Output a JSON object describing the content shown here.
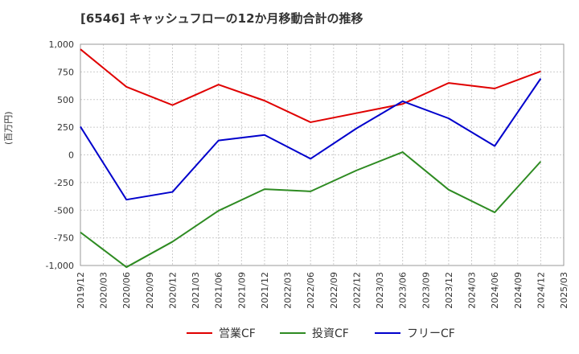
{
  "chart_data": {
    "type": "line",
    "title": "[6546]  キャッシュフローの12か月移動合計の推移",
    "xlabel": "",
    "ylabel": "(百万円)",
    "ylim": [
      -1000,
      1000
    ],
    "yticks": [
      -1000,
      -750,
      -500,
      -250,
      0,
      250,
      500,
      750,
      1000
    ],
    "ytick_labels": [
      "-1,000",
      "-750",
      "-500",
      "-250",
      "0",
      "250",
      "500",
      "750",
      "1,000"
    ],
    "categories": [
      "2019/12",
      "2020/03",
      "2020/06",
      "2020/09",
      "2020/12",
      "2021/03",
      "2021/06",
      "2021/09",
      "2021/12",
      "2022/03",
      "2022/06",
      "2022/09",
      "2022/12",
      "2023/03",
      "2023/06",
      "2023/09",
      "2023/12",
      "2024/03",
      "2024/06",
      "2024/09",
      "2024/12",
      "2025/03"
    ],
    "grid": true,
    "legend_position": "bottom",
    "series": [
      {
        "name": "営業CF",
        "color": "#e00000",
        "points": [
          [
            "2019/12",
            955
          ],
          [
            "2020/06",
            615
          ],
          [
            "2020/12",
            450
          ],
          [
            "2021/06",
            635
          ],
          [
            "2021/12",
            490
          ],
          [
            "2022/06",
            295
          ],
          [
            "2023/06",
            460
          ],
          [
            "2023/12",
            650
          ],
          [
            "2024/06",
            600
          ],
          [
            "2024/12",
            755
          ]
        ]
      },
      {
        "name": "投資CF",
        "color": "#2e8b22",
        "points": [
          [
            "2019/12",
            -700
          ],
          [
            "2020/06",
            -1015
          ],
          [
            "2020/12",
            -785
          ],
          [
            "2021/06",
            -505
          ],
          [
            "2021/12",
            -310
          ],
          [
            "2022/06",
            -330
          ],
          [
            "2022/12",
            -140
          ],
          [
            "2023/06",
            25
          ],
          [
            "2023/12",
            -315
          ],
          [
            "2024/06",
            -520
          ],
          [
            "2024/12",
            -60
          ]
        ]
      },
      {
        "name": "フリーCF",
        "color": "#0000cc",
        "points": [
          [
            "2019/12",
            255
          ],
          [
            "2020/06",
            -405
          ],
          [
            "2020/12",
            -335
          ],
          [
            "2021/06",
            130
          ],
          [
            "2021/12",
            180
          ],
          [
            "2022/06",
            -35
          ],
          [
            "2022/12",
            240
          ],
          [
            "2023/06",
            485
          ],
          [
            "2023/12",
            330
          ],
          [
            "2024/06",
            80
          ],
          [
            "2024/12",
            690
          ]
        ]
      }
    ]
  }
}
